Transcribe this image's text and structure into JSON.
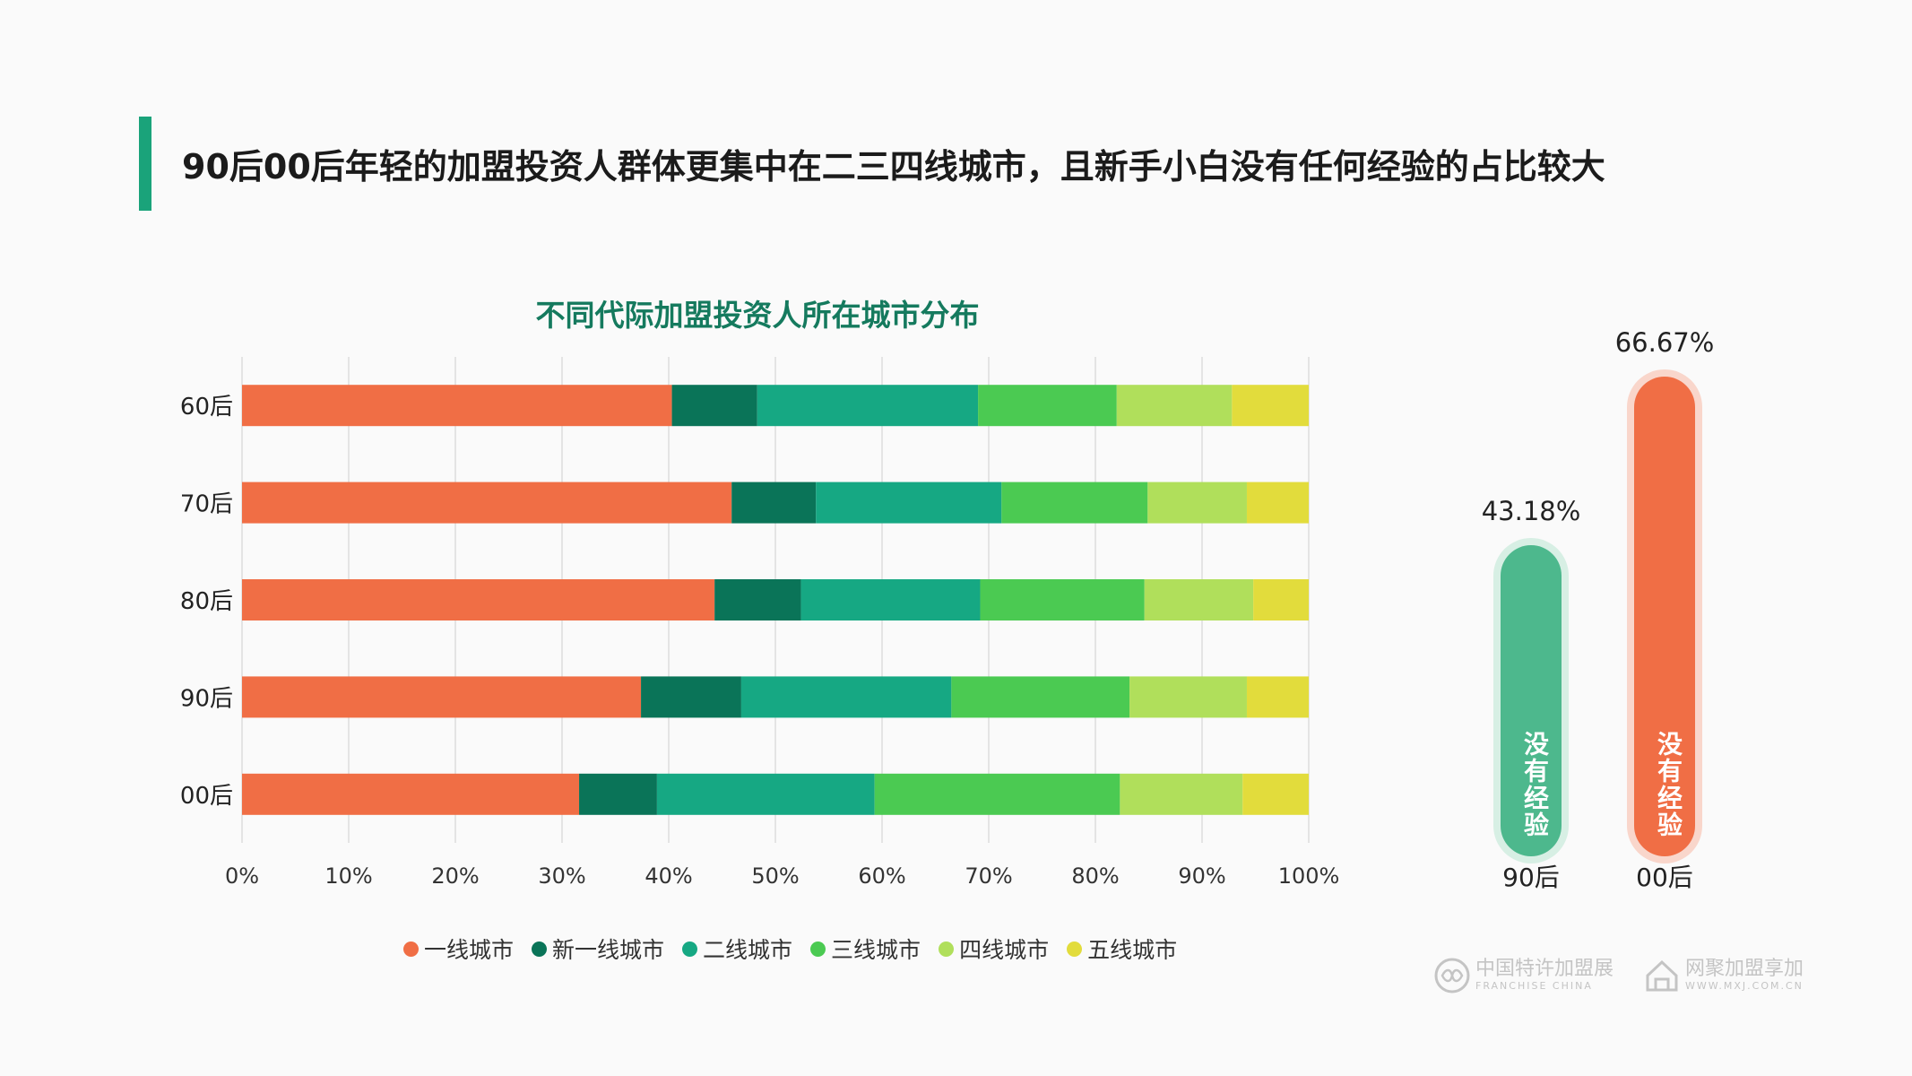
{
  "header": {
    "headline": "90后00后年轻的加盟投资人群体更集中在二三四线城市，且新手小白没有任何经验的占比较大"
  },
  "colors": {
    "accent": "#1aa37a",
    "series": [
      "#f06e45",
      "#0a7458",
      "#16a883",
      "#4bca52",
      "#b0df5b",
      "#e2dc3c"
    ],
    "capsule_green": "#4db88d",
    "capsule_green_halo": "#d7efe4",
    "capsule_orange": "#f06e45",
    "capsule_orange_halo": "#f9d6cb"
  },
  "chart_data": [
    {
      "type": "bar",
      "orientation": "horizontal",
      "stacked": "percent",
      "title": "不同代际加盟投资人所在城市分布",
      "categories": [
        "60后",
        "70后",
        "80后",
        "90后",
        "00后"
      ],
      "xlim": [
        0,
        100
      ],
      "x_ticks": [
        "0%",
        "10%",
        "20%",
        "30%",
        "40%",
        "50%",
        "60%",
        "70%",
        "80%",
        "90%",
        "100%"
      ],
      "grid": true,
      "legend_position": "bottom",
      "series": [
        {
          "name": "一线城市",
          "values": [
            40.3,
            45.9,
            44.3,
            37.4,
            31.6
          ]
        },
        {
          "name": "新一线城市",
          "values": [
            8.0,
            7.9,
            8.1,
            9.4,
            7.3
          ]
        },
        {
          "name": "二线城市",
          "values": [
            20.7,
            17.4,
            16.8,
            19.7,
            20.4
          ]
        },
        {
          "name": "三线城市",
          "values": [
            13.0,
            13.7,
            15.4,
            16.7,
            23.0
          ]
        },
        {
          "name": "四线城市",
          "values": [
            10.8,
            9.3,
            10.2,
            11.0,
            11.5
          ]
        },
        {
          "name": "五线城市",
          "values": [
            7.2,
            5.8,
            5.2,
            5.8,
            6.2
          ]
        }
      ]
    },
    {
      "type": "bar",
      "orientation": "vertical",
      "categories": [
        "90后",
        "00后"
      ],
      "values": [
        43.18,
        66.67
      ],
      "value_labels": [
        "43.18%",
        "66.67%"
      ],
      "bar_label": "没有经验"
    }
  ],
  "watermarks": {
    "logo1_main": "中国特许加盟展",
    "logo1_sub": "FRANCHISE CHINA",
    "logo2_main": "网聚加盟享加",
    "logo2_sub": "WWW.MXJ.COM.CN"
  }
}
